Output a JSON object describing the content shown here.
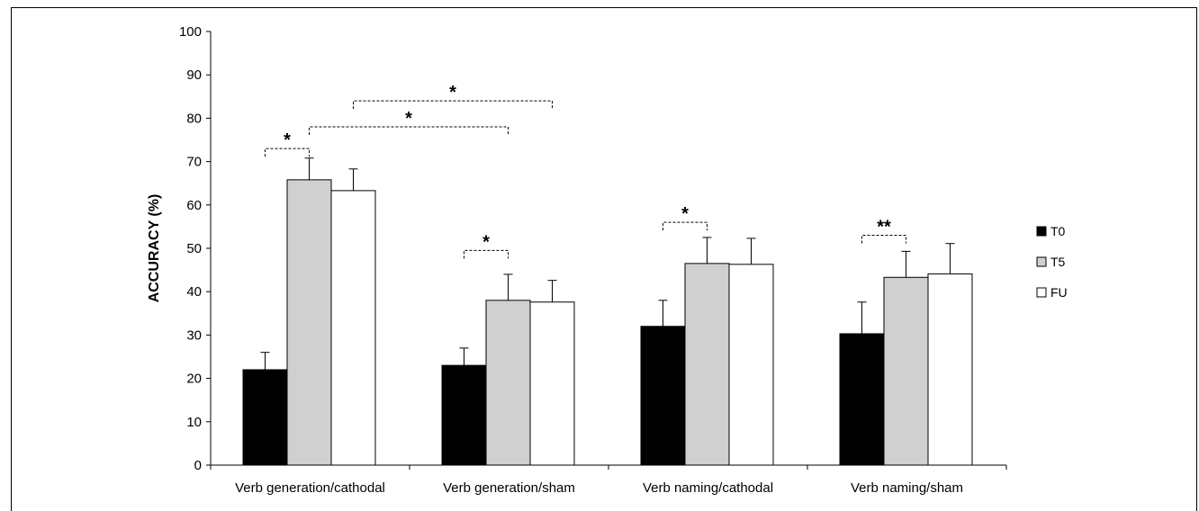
{
  "chart_data": {
    "type": "bar",
    "title": "",
    "xlabel": "",
    "ylabel": "ACCURACY (%)",
    "ylim": [
      0,
      100
    ],
    "yticks": [
      0,
      10,
      20,
      30,
      40,
      50,
      60,
      70,
      80,
      90,
      100
    ],
    "grid": false,
    "legend_position": "right",
    "categories": [
      "Verb generation/cathodal",
      "Verb generation/sham",
      "Verb naming/cathodal",
      "Verb naming/sham"
    ],
    "series": [
      {
        "name": "T0",
        "color": "#000000",
        "values": [
          22.0,
          23.0,
          32.0,
          30.3
        ],
        "errors": [
          4.0,
          4.0,
          6.0,
          7.3
        ]
      },
      {
        "name": "T5",
        "color": "#d0d0d0",
        "values": [
          65.8,
          38.0,
          46.5,
          43.3
        ],
        "errors": [
          5.0,
          6.0,
          6.0,
          6.0
        ]
      },
      {
        "name": "FU",
        "color": "#ffffff",
        "values": [
          63.3,
          37.6,
          46.3,
          44.1
        ],
        "errors": [
          5.0,
          5.0,
          6.0,
          7.0
        ]
      }
    ],
    "annotations": [
      {
        "label": "*",
        "from": {
          "category": 0,
          "series": 0
        },
        "to": {
          "category": 0,
          "series": 1
        },
        "y": 73
      },
      {
        "label": "*",
        "from": {
          "category": 0,
          "series": 1
        },
        "to": {
          "category": 1,
          "series": 1
        },
        "y": 78
      },
      {
        "label": "*",
        "from": {
          "category": 0,
          "series": 2
        },
        "to": {
          "category": 1,
          "series": 2
        },
        "y": 84
      },
      {
        "label": "*",
        "from": {
          "category": 1,
          "series": 0
        },
        "to": {
          "category": 1,
          "series": 1
        },
        "y": 49.5
      },
      {
        "label": "*",
        "from": {
          "category": 2,
          "series": 0
        },
        "to": {
          "category": 2,
          "series": 1
        },
        "y": 56
      },
      {
        "label": "**",
        "from": {
          "category": 3,
          "series": 0
        },
        "to": {
          "category": 3,
          "series": 1
        },
        "y": 53
      }
    ]
  }
}
